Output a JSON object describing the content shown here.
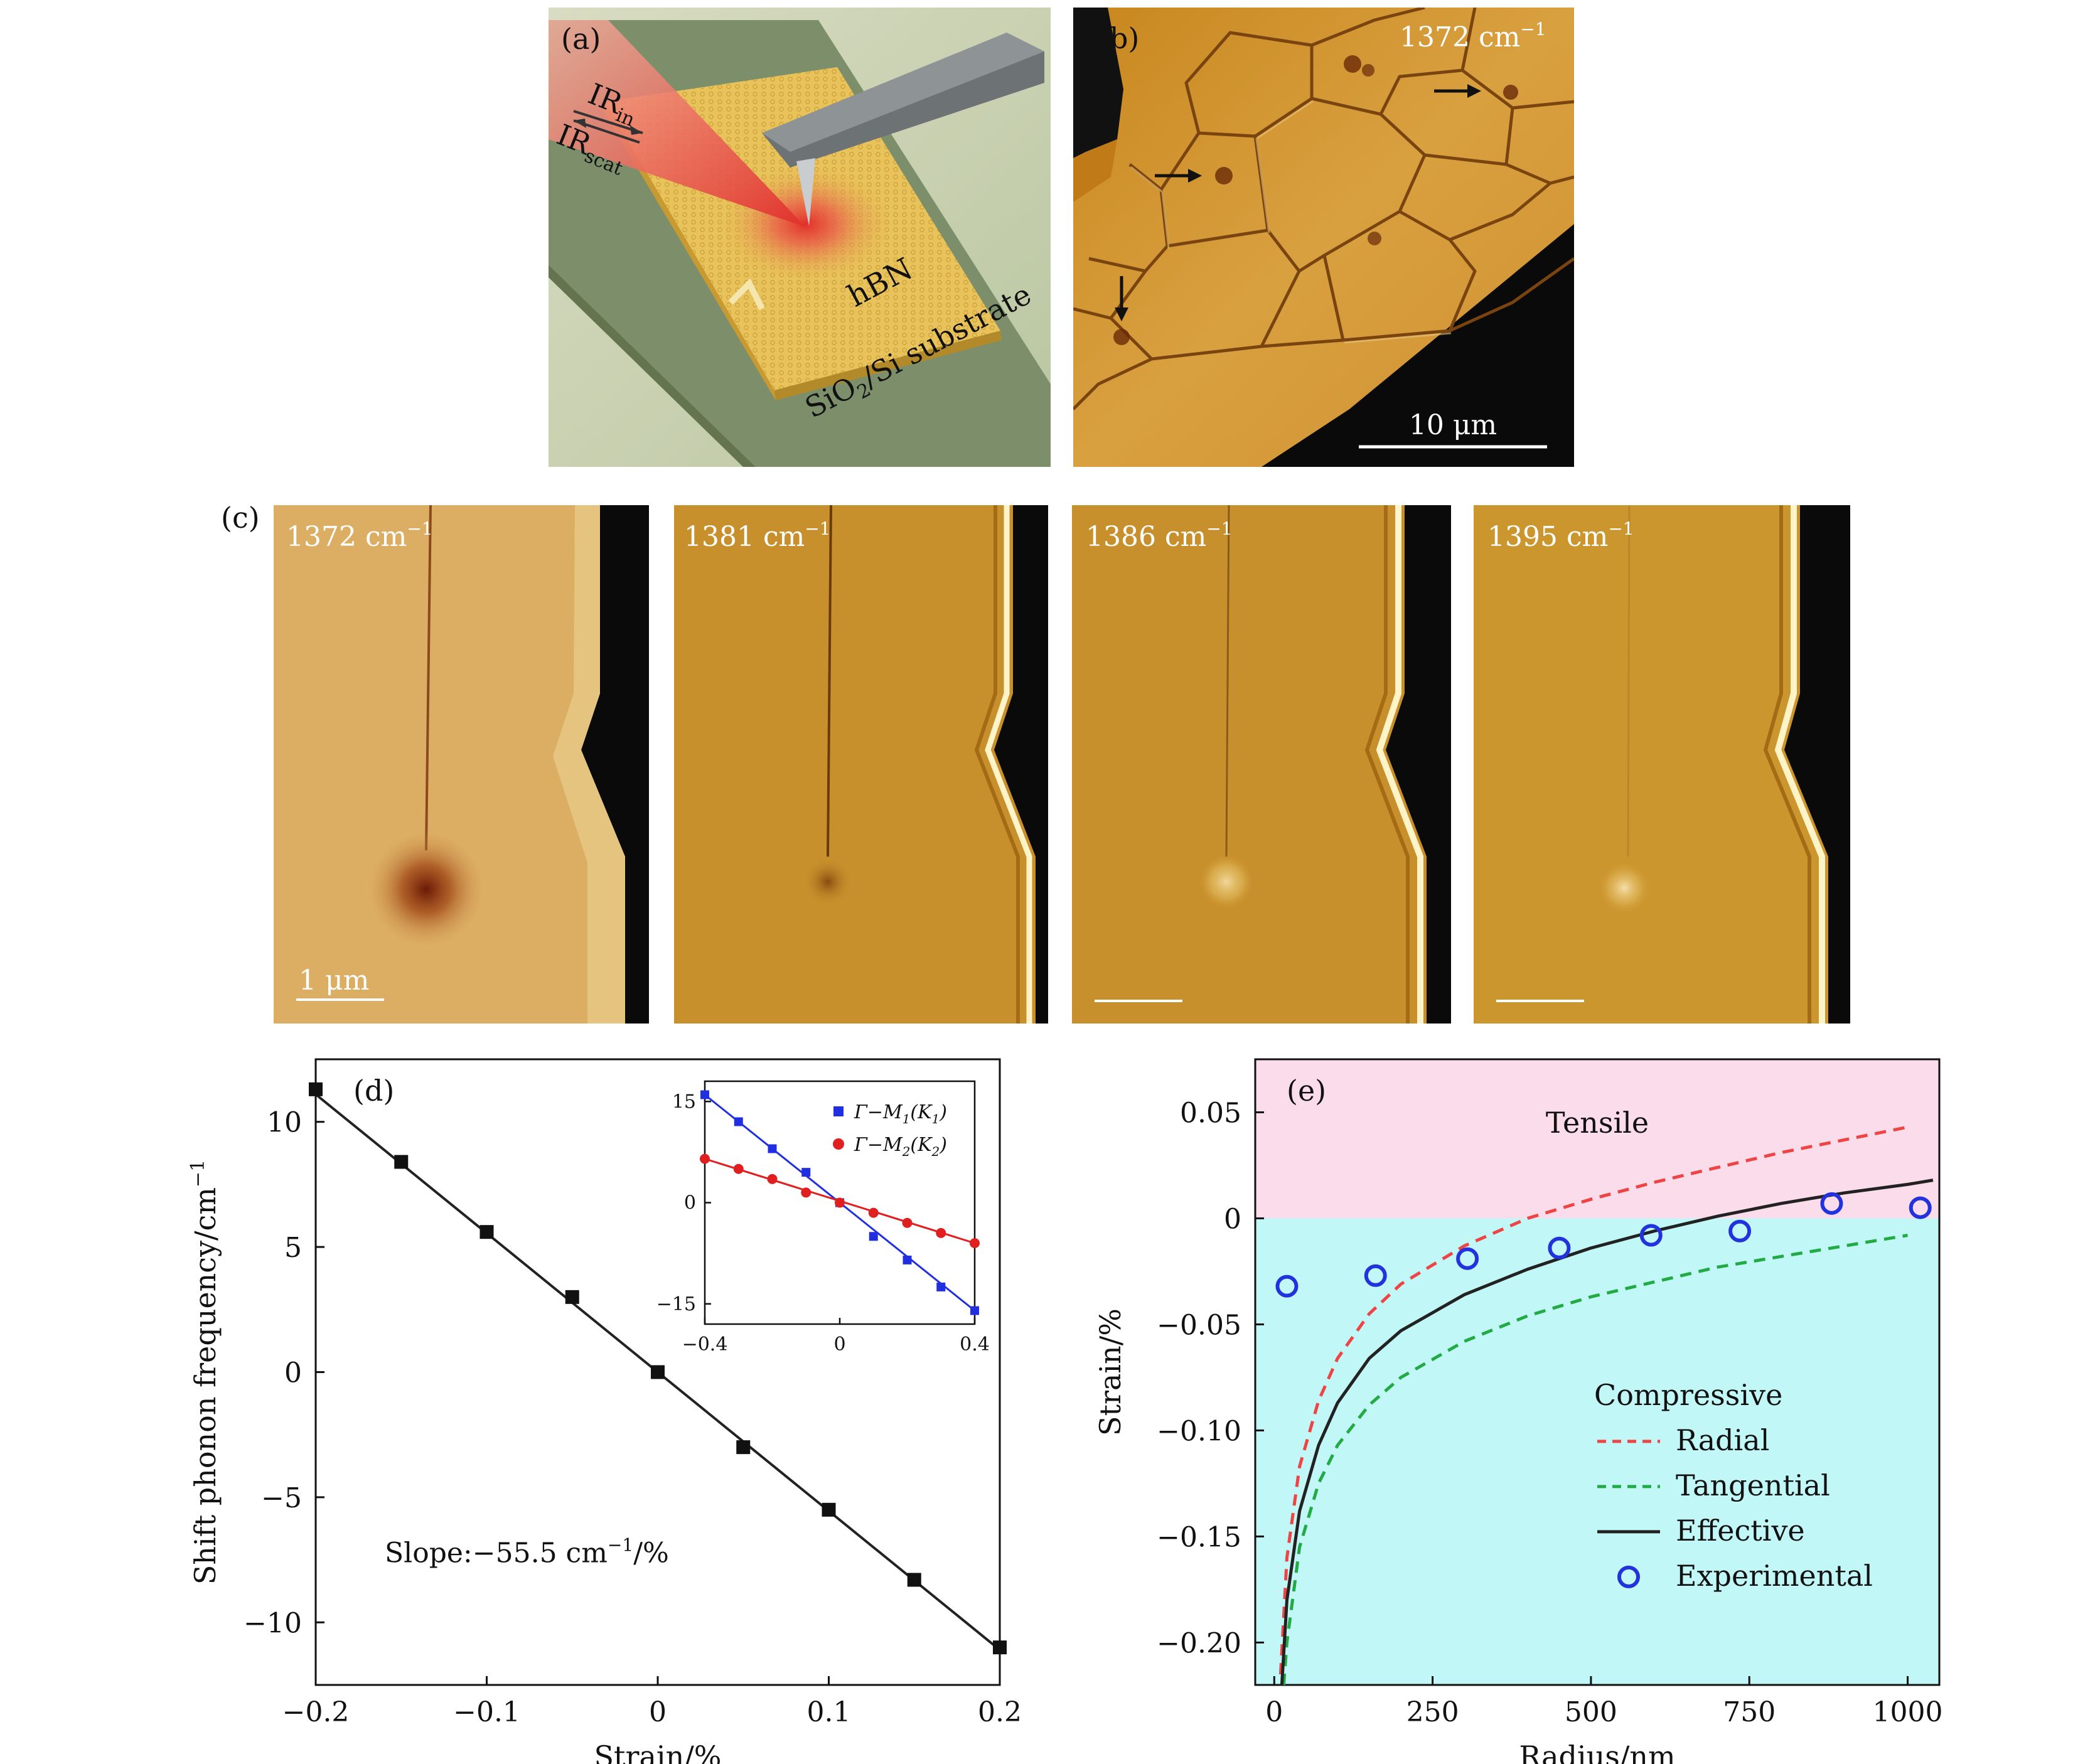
{
  "figure": {
    "panel_a": {
      "label": "(a)",
      "ir_in": "IR",
      "ir_in_sub": "in",
      "ir_scat": "IR",
      "ir_scat_sub": "scat",
      "hbn": "hBN",
      "substrate": "SiO",
      "substrate_sub": "2",
      "substrate_rest": "/Si substrate"
    },
    "panel_b": {
      "label": "(b)",
      "wavenumber": "1372 cm",
      "wavenumber_sup": "−1",
      "scalebar": "10 μm"
    },
    "panel_c": {
      "label": "(c)",
      "images": [
        {
          "wavenumber": "1372 cm",
          "sup": "−1",
          "scalebar": "1 μm"
        },
        {
          "wavenumber": "1381 cm",
          "sup": "−1",
          "scalebar": ""
        },
        {
          "wavenumber": "1386 cm",
          "sup": "−1",
          "scalebar": ""
        },
        {
          "wavenumber": "1395 cm",
          "sup": "−1",
          "scalebar": ""
        }
      ]
    }
  },
  "chart_data": [
    {
      "panel": "(d)",
      "type": "scatter",
      "xlabel": "Strain/%",
      "ylabel": "Shift phonon frequency/cm",
      "ylabel_sup": "−1",
      "xlim": [
        -0.2,
        0.2
      ],
      "ylim": [
        -12.5,
        12.5
      ],
      "xticks": [
        -0.2,
        -0.1,
        0,
        0.1,
        0.2
      ],
      "xtick_labels": [
        "−0.2",
        "−0.1",
        "0",
        "0.1",
        "0.2"
      ],
      "yticks": [
        -10,
        -5,
        0,
        5,
        10
      ],
      "ytick_labels": [
        "−10",
        "−5",
        "0",
        "5",
        "10"
      ],
      "annotation": "Slope:−55.5 cm",
      "annotation_sup": "−1",
      "annotation_end": "/%",
      "series": [
        {
          "marker": "square",
          "color": "#111111",
          "x": [
            -0.2,
            -0.15,
            -0.1,
            -0.05,
            0,
            0.05,
            0.1,
            0.15,
            0.2
          ],
          "y": [
            11.3,
            8.4,
            5.6,
            3.0,
            0.0,
            -3.0,
            -5.5,
            -8.3,
            -11.0
          ]
        }
      ],
      "fit_line": {
        "x": [
          -0.2,
          0.2
        ],
        "y": [
          11.1,
          -11.1
        ]
      },
      "inset": {
        "xlim": [
          -0.4,
          0.4
        ],
        "ylim": [
          -18,
          18
        ],
        "xticks": [
          -0.4,
          0,
          0.4
        ],
        "xtick_labels": [
          "−0.4",
          "0",
          "0.4"
        ],
        "yticks": [
          -15,
          0,
          15
        ],
        "ytick_labels": [
          "−15",
          "0",
          "15"
        ],
        "series": [
          {
            "name": "Γ−M1(K1)",
            "name_main": "Γ−M",
            "name_sub": "1",
            "name_paren": "(K",
            "name_sub2": "1",
            "name_close": ")",
            "color": "#2030e0",
            "marker": "square",
            "x": [
              -0.4,
              -0.3,
              -0.2,
              -0.1,
              0,
              0.1,
              0.2,
              0.3,
              0.4
            ],
            "y": [
              16.0,
              12.0,
              8.0,
              4.5,
              0.0,
              -5.0,
              -8.5,
              -12.5,
              -16.0
            ]
          },
          {
            "name": "Γ−M2(K2)",
            "name_main": "Γ−M",
            "name_sub": "2",
            "name_paren": "(K",
            "name_sub2": "2",
            "name_close": ")",
            "color": "#e02020",
            "marker": "circle",
            "x": [
              -0.4,
              -0.3,
              -0.2,
              -0.1,
              0,
              0.1,
              0.2,
              0.3,
              0.4
            ],
            "y": [
              6.5,
              5.0,
              3.5,
              1.5,
              0.0,
              -1.5,
              -3.0,
              -4.5,
              -6.0
            ]
          }
        ]
      }
    },
    {
      "panel": "(e)",
      "type": "line",
      "xlabel": "Radius/nm",
      "ylabel": "Strain/%",
      "xlim": [
        -30,
        1050
      ],
      "ylim": [
        -0.22,
        0.075
      ],
      "xticks": [
        0,
        250,
        500,
        750,
        1000
      ],
      "xtick_labels": [
        "0",
        "250",
        "500",
        "750",
        "1000"
      ],
      "yticks": [
        0.05,
        0,
        -0.05,
        -0.1,
        -0.15,
        -0.2
      ],
      "ytick_labels": [
        "0.05",
        "0",
        "−0.05",
        "−0.10",
        "−0.15",
        "−0.20"
      ],
      "regions": [
        {
          "label": "Tensile",
          "color": "#fbdcea",
          "from": 0,
          "to": 0.075
        },
        {
          "label": "Compressive",
          "color": "#c2f7f7",
          "from": -0.22,
          "to": 0
        }
      ],
      "series": [
        {
          "name": "Radial",
          "style": "dashed",
          "color": "#ee4444",
          "x": [
            10,
            20,
            40,
            70,
            100,
            150,
            200,
            300,
            400,
            500,
            600,
            700,
            800,
            900,
            1000
          ],
          "y": [
            -0.215,
            -0.16,
            -0.117,
            -0.086,
            -0.066,
            -0.045,
            -0.031,
            -0.013,
            0.0,
            0.009,
            0.017,
            0.024,
            0.031,
            0.037,
            0.043
          ]
        },
        {
          "name": "Tangential",
          "style": "dashed",
          "color": "#22aa44",
          "x": [
            15,
            20,
            40,
            70,
            100,
            150,
            200,
            300,
            400,
            500,
            600,
            700,
            800,
            900,
            1000
          ],
          "y": [
            -0.22,
            -0.2,
            -0.155,
            -0.125,
            -0.107,
            -0.088,
            -0.075,
            -0.058,
            -0.046,
            -0.037,
            -0.03,
            -0.023,
            -0.018,
            -0.013,
            -0.008
          ]
        },
        {
          "name": "Effective",
          "style": "solid",
          "color": "#222222",
          "x": [
            12,
            20,
            40,
            70,
            100,
            150,
            200,
            300,
            400,
            500,
            600,
            700,
            800,
            900,
            1000,
            1040
          ],
          "y": [
            -0.22,
            -0.18,
            -0.138,
            -0.107,
            -0.087,
            -0.066,
            -0.053,
            -0.036,
            -0.024,
            -0.014,
            -0.006,
            0.001,
            0.007,
            0.012,
            0.016,
            0.018
          ]
        },
        {
          "name": "Experimental",
          "style": "marker",
          "color": "#2233dd",
          "x": [
            20,
            160,
            305,
            450,
            595,
            735,
            880,
            1020
          ],
          "y": [
            -0.032,
            -0.027,
            -0.019,
            -0.014,
            -0.008,
            -0.006,
            0.007,
            0.005
          ]
        }
      ]
    }
  ]
}
